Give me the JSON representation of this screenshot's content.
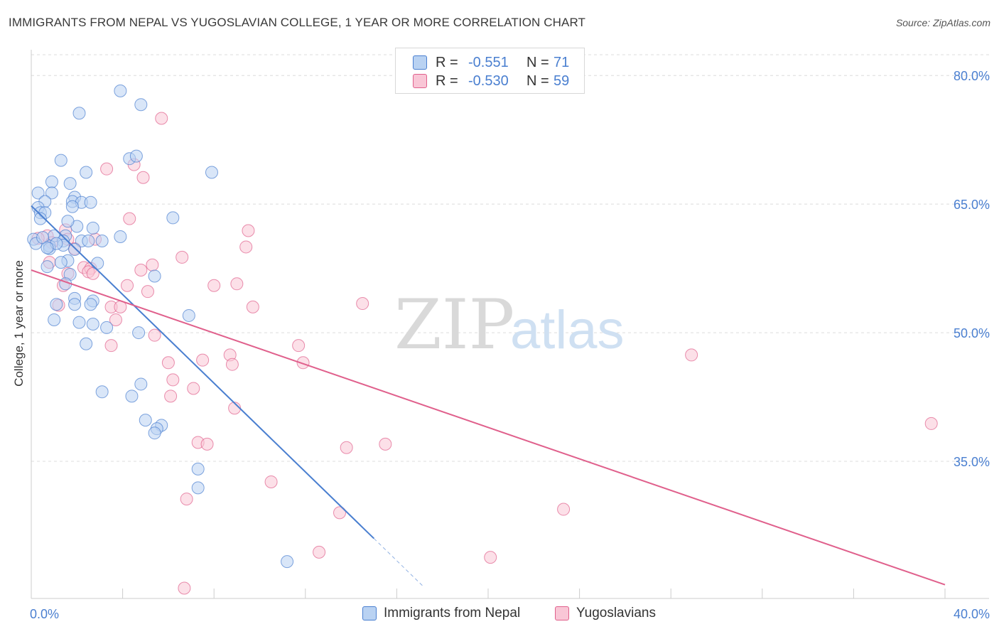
{
  "title": "IMMIGRANTS FROM NEPAL VS YUGOSLAVIAN COLLEGE, 1 YEAR OR MORE CORRELATION CHART",
  "source": "Source: ZipAtlas.com",
  "watermark": {
    "zip": "ZIP",
    "atlas": "atlas"
  },
  "legend": {
    "rows": [
      {
        "r_label": "R =",
        "r_value": "-0.551",
        "n_label": "N =",
        "n_value": "71"
      },
      {
        "r_label": "R =",
        "r_value": "-0.530",
        "n_label": "N =",
        "n_value": "59"
      }
    ]
  },
  "colors": {
    "nepal": "#4a7fd0",
    "nepal_fill": "#b9d2f2",
    "yugoslav": "#e0608c",
    "yugoslav_fill": "#f9c6d6",
    "grid": "#dcdcdc",
    "axis_label": "#4a7fd0"
  },
  "chart_data": {
    "type": "scatter",
    "title": "IMMIGRANTS FROM NEPAL VS YUGOSLAVIAN COLLEGE, 1 YEAR OR MORE CORRELATION CHART",
    "xlabel": "",
    "ylabel": "College, 1 year or more",
    "xlim": [
      0,
      40
    ],
    "ylim": [
      19,
      83
    ],
    "x_tick_labels": [
      "0.0%",
      "40.0%"
    ],
    "y_ticks": [
      35,
      50,
      65,
      80
    ],
    "y_tick_labels": [
      "35.0%",
      "50.0%",
      "65.0%",
      "80.0%"
    ],
    "grid": true,
    "series": [
      {
        "name": "Immigrants from Nepal",
        "color": "#4a7fd0",
        "R": -0.551,
        "N": 71,
        "trend": {
          "x0": 0,
          "y0": 64.8,
          "x1": 15.0,
          "y1": 26.0,
          "dash_to_x": 17.2,
          "dash_to_y": 20.3
        },
        "points": [
          [
            3.9,
            78.2
          ],
          [
            4.8,
            76.6
          ],
          [
            2.1,
            75.6
          ],
          [
            4.3,
            70.3
          ],
          [
            4.6,
            70.6
          ],
          [
            1.3,
            70.1
          ],
          [
            7.9,
            68.7
          ],
          [
            2.4,
            68.7
          ],
          [
            0.9,
            67.6
          ],
          [
            1.7,
            67.4
          ],
          [
            0.3,
            66.3
          ],
          [
            0.9,
            66.3
          ],
          [
            1.9,
            65.8
          ],
          [
            0.6,
            65.3
          ],
          [
            1.8,
            65.3
          ],
          [
            2.2,
            65.2
          ],
          [
            2.6,
            65.2
          ],
          [
            0.3,
            64.6
          ],
          [
            0.4,
            64.0
          ],
          [
            1.8,
            64.7
          ],
          [
            0.6,
            64.0
          ],
          [
            0.4,
            63.3
          ],
          [
            6.2,
            63.4
          ],
          [
            2.7,
            62.2
          ],
          [
            3.9,
            61.2
          ],
          [
            1.0,
            61.3
          ],
          [
            1.5,
            61.3
          ],
          [
            1.4,
            60.7
          ],
          [
            0.1,
            60.9
          ],
          [
            2.2,
            60.7
          ],
          [
            3.1,
            60.7
          ],
          [
            2.5,
            60.7
          ],
          [
            0.8,
            60.1
          ],
          [
            1.4,
            60.2
          ],
          [
            1.9,
            59.7
          ],
          [
            0.8,
            59.8
          ],
          [
            2.9,
            58.1
          ],
          [
            1.6,
            58.4
          ],
          [
            1.3,
            58.2
          ],
          [
            0.7,
            57.7
          ],
          [
            1.7,
            56.8
          ],
          [
            5.4,
            56.6
          ],
          [
            1.5,
            55.7
          ],
          [
            1.9,
            54.0
          ],
          [
            2.7,
            53.7
          ],
          [
            1.1,
            53.3
          ],
          [
            1.9,
            53.3
          ],
          [
            2.6,
            53.3
          ],
          [
            6.9,
            52.0
          ],
          [
            1.0,
            51.5
          ],
          [
            2.1,
            51.2
          ],
          [
            2.7,
            51.0
          ],
          [
            3.3,
            50.6
          ],
          [
            4.7,
            50.0
          ],
          [
            2.4,
            48.7
          ],
          [
            3.1,
            43.1
          ],
          [
            4.4,
            42.6
          ],
          [
            4.8,
            44.0
          ],
          [
            5.0,
            39.8
          ],
          [
            5.7,
            39.2
          ],
          [
            5.5,
            38.8
          ],
          [
            5.4,
            38.3
          ],
          [
            7.3,
            34.1
          ],
          [
            7.3,
            31.9
          ],
          [
            11.2,
            23.3
          ],
          [
            0.2,
            60.4
          ],
          [
            0.5,
            61.1
          ],
          [
            1.1,
            60.4
          ],
          [
            0.7,
            59.9
          ],
          [
            2.0,
            62.4
          ],
          [
            1.6,
            63.0
          ]
        ]
      },
      {
        "name": "Yugoslavians",
        "color": "#e0608c",
        "R": -0.53,
        "N": 59,
        "trend": {
          "x0": 0,
          "y0": 57.3,
          "x1": 40,
          "y1": 20.6
        },
        "points": [
          [
            5.7,
            75.0
          ],
          [
            3.3,
            69.1
          ],
          [
            4.5,
            69.6
          ],
          [
            4.9,
            68.1
          ],
          [
            4.3,
            63.3
          ],
          [
            1.5,
            62.0
          ],
          [
            9.5,
            61.9
          ],
          [
            0.7,
            61.3
          ],
          [
            1.6,
            60.9
          ],
          [
            2.8,
            60.9
          ],
          [
            0.9,
            60.5
          ],
          [
            9.4,
            60.0
          ],
          [
            1.9,
            59.8
          ],
          [
            6.6,
            58.8
          ],
          [
            0.8,
            58.2
          ],
          [
            5.3,
            57.9
          ],
          [
            2.3,
            57.6
          ],
          [
            2.6,
            57.5
          ],
          [
            4.8,
            57.3
          ],
          [
            2.5,
            57.1
          ],
          [
            2.7,
            56.9
          ],
          [
            1.6,
            56.9
          ],
          [
            9.0,
            55.7
          ],
          [
            8.0,
            55.5
          ],
          [
            4.2,
            55.5
          ],
          [
            1.4,
            55.5
          ],
          [
            5.1,
            54.8
          ],
          [
            14.5,
            53.4
          ],
          [
            9.7,
            53.0
          ],
          [
            3.5,
            53.0
          ],
          [
            3.9,
            53.0
          ],
          [
            1.2,
            53.2
          ],
          [
            3.7,
            51.5
          ],
          [
            5.4,
            49.7
          ],
          [
            3.5,
            48.5
          ],
          [
            11.7,
            48.5
          ],
          [
            28.9,
            47.4
          ],
          [
            8.7,
            47.4
          ],
          [
            7.5,
            46.8
          ],
          [
            11.9,
            46.5
          ],
          [
            6.0,
            46.5
          ],
          [
            8.8,
            46.3
          ],
          [
            6.2,
            44.5
          ],
          [
            7.1,
            43.5
          ],
          [
            6.1,
            42.6
          ],
          [
            8.9,
            41.2
          ],
          [
            39.4,
            39.4
          ],
          [
            7.3,
            37.2
          ],
          [
            7.7,
            37.0
          ],
          [
            15.5,
            37.0
          ],
          [
            13.8,
            36.6
          ],
          [
            10.5,
            32.6
          ],
          [
            6.8,
            30.6
          ],
          [
            13.5,
            29.0
          ],
          [
            23.3,
            29.4
          ],
          [
            12.6,
            24.4
          ],
          [
            20.1,
            23.8
          ],
          [
            6.7,
            20.2
          ],
          [
            0.3,
            61.0
          ]
        ]
      }
    ]
  },
  "bottom_legend": [
    {
      "label": "Immigrants from Nepal"
    },
    {
      "label": "Yugoslavians"
    }
  ]
}
